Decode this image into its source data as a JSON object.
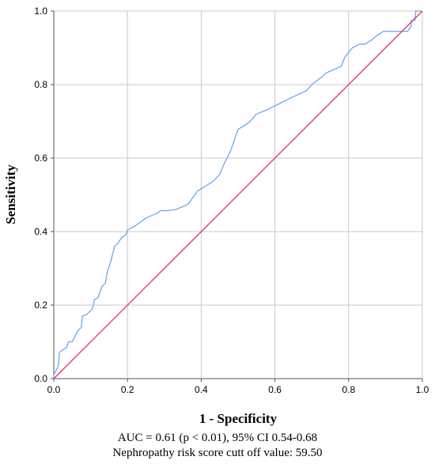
{
  "chart_data": {
    "type": "line",
    "xlabel": "1 - Specificity",
    "ylabel": "Sensitivity",
    "xlim": [
      0,
      1
    ],
    "ylim": [
      0,
      1
    ],
    "xticks": [
      "0.0",
      "0.2",
      "0.4",
      "0.6",
      "0.8",
      "1.0"
    ],
    "yticks": [
      "0.0",
      "0.2",
      "0.4",
      "0.6",
      "0.8",
      "1.0"
    ],
    "grid": true,
    "series": [
      {
        "color": "#6fa8e8",
        "points": [
          [
            0,
            0
          ],
          [
            0,
            0.01
          ],
          [
            0.005,
            0.02
          ],
          [
            0.01,
            0.03
          ],
          [
            0.013,
            0.04
          ],
          [
            0.015,
            0.07
          ],
          [
            0.02,
            0.075
          ],
          [
            0.035,
            0.085
          ],
          [
            0.04,
            0.1
          ],
          [
            0.05,
            0.1
          ],
          [
            0.055,
            0.11
          ],
          [
            0.065,
            0.13
          ],
          [
            0.075,
            0.14
          ],
          [
            0.078,
            0.17
          ],
          [
            0.09,
            0.175
          ],
          [
            0.105,
            0.19
          ],
          [
            0.11,
            0.215
          ],
          [
            0.12,
            0.22
          ],
          [
            0.13,
            0.25
          ],
          [
            0.14,
            0.26
          ],
          [
            0.145,
            0.29
          ],
          [
            0.155,
            0.32
          ],
          [
            0.165,
            0.36
          ],
          [
            0.175,
            0.37
          ],
          [
            0.185,
            0.385
          ],
          [
            0.195,
            0.39
          ],
          [
            0.2,
            0.405
          ],
          [
            0.21,
            0.41
          ],
          [
            0.22,
            0.415
          ],
          [
            0.25,
            0.437
          ],
          [
            0.28,
            0.45
          ],
          [
            0.29,
            0.457
          ],
          [
            0.31,
            0.457
          ],
          [
            0.33,
            0.46
          ],
          [
            0.355,
            0.47
          ],
          [
            0.365,
            0.475
          ],
          [
            0.375,
            0.49
          ],
          [
            0.39,
            0.51
          ],
          [
            0.41,
            0.523
          ],
          [
            0.43,
            0.535
          ],
          [
            0.45,
            0.555
          ],
          [
            0.46,
            0.58
          ],
          [
            0.47,
            0.6
          ],
          [
            0.48,
            0.62
          ],
          [
            0.49,
            0.65
          ],
          [
            0.5,
            0.678
          ],
          [
            0.53,
            0.697
          ],
          [
            0.55,
            0.72
          ],
          [
            0.575,
            0.73
          ],
          [
            0.6,
            0.742
          ],
          [
            0.65,
            0.767
          ],
          [
            0.685,
            0.783
          ],
          [
            0.7,
            0.8
          ],
          [
            0.73,
            0.823
          ],
          [
            0.74,
            0.832
          ],
          [
            0.78,
            0.85
          ],
          [
            0.79,
            0.875
          ],
          [
            0.81,
            0.9
          ],
          [
            0.83,
            0.91
          ],
          [
            0.845,
            0.91
          ],
          [
            0.86,
            0.92
          ],
          [
            0.875,
            0.932
          ],
          [
            0.895,
            0.945
          ],
          [
            0.94,
            0.945
          ],
          [
            0.96,
            0.945
          ],
          [
            0.97,
            0.96
          ],
          [
            0.97,
            0.975
          ],
          [
            0.98,
            0.975
          ],
          [
            0.982,
            1.0
          ],
          [
            1.0,
            1.0
          ]
        ]
      },
      {
        "color": "#e0355c",
        "points": [
          [
            0,
            0
          ],
          [
            1,
            1
          ]
        ]
      }
    ]
  },
  "caption": {
    "line1": "AUC = 0.61 (p < 0.01), 95% CI 0.54-0.68",
    "line2": "Nephropathy risk score cutt off value: 59.50"
  }
}
